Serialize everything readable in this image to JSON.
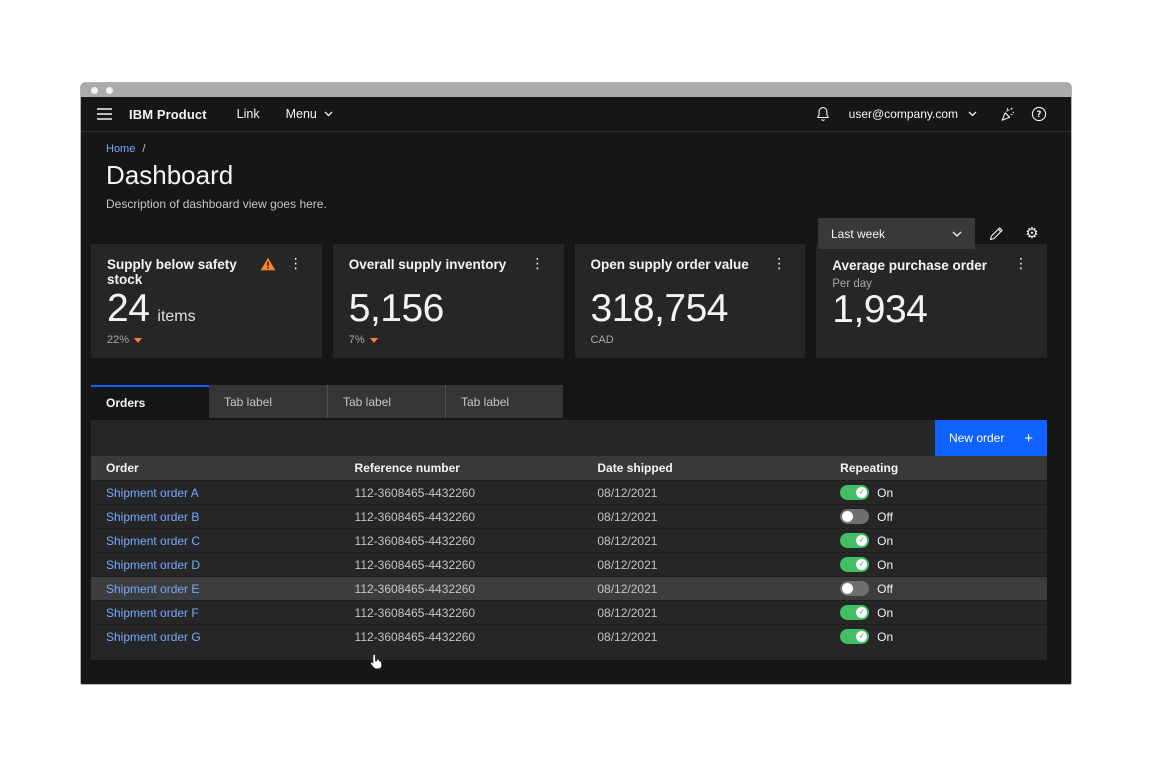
{
  "window": {
    "dots": 2
  },
  "header": {
    "product": "IBM Product",
    "link_label": "Link",
    "menu_label": "Menu",
    "account_email": "user@company.com"
  },
  "breadcrumb": {
    "home": "Home",
    "separator": "/"
  },
  "page": {
    "title": "Dashboard",
    "description": "Description of dashboard view goes here."
  },
  "filters": {
    "period_value": "Last week"
  },
  "cards": [
    {
      "title": "Supply below safety stock",
      "value": "24",
      "suffix": "items",
      "trend": "22%",
      "trend_direction": "down",
      "has_warning": true
    },
    {
      "title": "Overall supply inventory",
      "value": "5,156",
      "trend": "7%",
      "trend_direction": "down"
    },
    {
      "title": "Open supply order value",
      "value": "318,754",
      "unit": "CAD"
    },
    {
      "title": "Average purchase order",
      "subtitle": "Per day",
      "value": "1,934"
    }
  ],
  "tabs": [
    {
      "label": "Orders",
      "active": true
    },
    {
      "label": "Tab label",
      "active": false
    },
    {
      "label": "Tab label",
      "active": false
    },
    {
      "label": "Tab label",
      "active": false
    }
  ],
  "table": {
    "action_label": "New order",
    "action_icon": "+",
    "columns": [
      "Order",
      "Reference number",
      "Date shipped",
      "Repeating"
    ],
    "rows": [
      {
        "order": "Shipment order A",
        "reference": "112-3608465-4432260",
        "date_shipped": "08/12/2021",
        "repeating": "On",
        "hovered": false
      },
      {
        "order": "Shipment order B",
        "reference": "112-3608465-4432260",
        "date_shipped": "08/12/2021",
        "repeating": "Off",
        "hovered": false
      },
      {
        "order": "Shipment order C",
        "reference": "112-3608465-4432260",
        "date_shipped": "08/12/2021",
        "repeating": "On",
        "hovered": false
      },
      {
        "order": "Shipment order D",
        "reference": "112-3608465-4432260",
        "date_shipped": "08/12/2021",
        "repeating": "On",
        "hovered": false
      },
      {
        "order": "Shipment order E",
        "reference": "112-3608465-4432260",
        "date_shipped": "08/12/2021",
        "repeating": "Off",
        "hovered": true
      },
      {
        "order": "Shipment order F",
        "reference": "112-3608465-4432260",
        "date_shipped": "08/12/2021",
        "repeating": "On",
        "hovered": false
      },
      {
        "order": "Shipment order G",
        "reference": "112-3608465-4432260",
        "date_shipped": "08/12/2021",
        "repeating": "On",
        "hovered": false
      }
    ]
  },
  "colors": {
    "accent_blue": "#0f62fe",
    "link_blue": "#78a9ff",
    "warning_orange": "#ff832b",
    "toggle_on_green": "#42be65",
    "page_bg": "#161616",
    "layer_bg": "#262626",
    "field_bg": "#393939"
  }
}
